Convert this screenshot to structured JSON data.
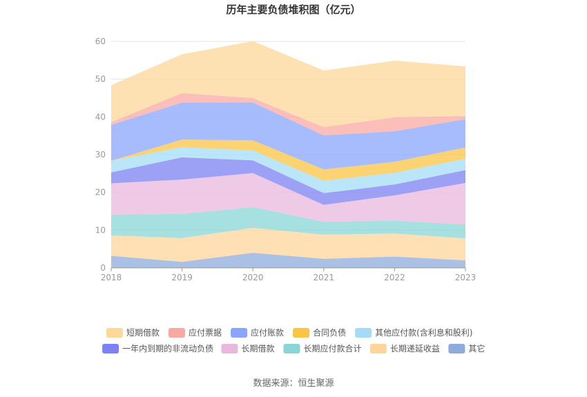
{
  "chart_data": {
    "type": "area",
    "stacked": true,
    "title": "历年主要负债堆积图（亿元）",
    "categories": [
      "2018",
      "2019",
      "2020",
      "2021",
      "2022",
      "2023"
    ],
    "ylim": [
      0,
      60
    ],
    "yticks": [
      "0",
      "10",
      "20",
      "30",
      "40",
      "50",
      "60"
    ],
    "grid": true,
    "legend_position": "bottom",
    "series": [
      {
        "name": "其它",
        "color": "#8fabdc",
        "values": [
          3.2,
          1.6,
          4.0,
          2.4,
          3.0,
          2.0
        ]
      },
      {
        "name": "长期递延收益",
        "color": "#fed69b",
        "values": [
          5.4,
          6.3,
          6.6,
          6.4,
          6.1,
          5.8
        ]
      },
      {
        "name": "长期应付款合计",
        "color": "#8ad5d7",
        "values": [
          5.5,
          6.4,
          5.5,
          3.4,
          3.4,
          3.7
        ]
      },
      {
        "name": "长期借款",
        "color": "#e9b8dd",
        "values": [
          8.3,
          9.1,
          9.0,
          4.5,
          6.7,
          11.0
        ]
      },
      {
        "name": "一年内到期的非流动负债",
        "color": "#7c81f3",
        "values": [
          2.9,
          5.9,
          3.4,
          3.1,
          2.9,
          3.4
        ]
      },
      {
        "name": "其他应付款(含利息和股利)",
        "color": "#a4dcf7",
        "values": [
          3.1,
          2.7,
          2.6,
          3.3,
          3.1,
          3.0
        ]
      },
      {
        "name": "合同负债",
        "color": "#fbc443",
        "values": [
          0.0,
          2.0,
          2.7,
          3.0,
          2.9,
          3.0
        ]
      },
      {
        "name": "应付账款",
        "color": "#8aa6fc",
        "values": [
          9.5,
          9.8,
          10.0,
          9.0,
          8.1,
          7.5
        ]
      },
      {
        "name": "应付票据",
        "color": "#fba8a2",
        "values": [
          0.7,
          2.5,
          1.2,
          2.2,
          3.7,
          0.8
        ]
      },
      {
        "name": "短期借款",
        "color": "#fed799",
        "values": [
          9.8,
          10.3,
          15.1,
          15.0,
          15.0,
          13.2
        ]
      }
    ],
    "legend_order": [
      "短期借款",
      "应付票据",
      "应付账款",
      "合同负债",
      "其他应付款(含利息和股利)",
      "一年内到期的非流动负债",
      "长期借款",
      "长期应付款合计",
      "长期递延收益",
      "其它"
    ]
  },
  "source": "数据来源：恒生聚源"
}
